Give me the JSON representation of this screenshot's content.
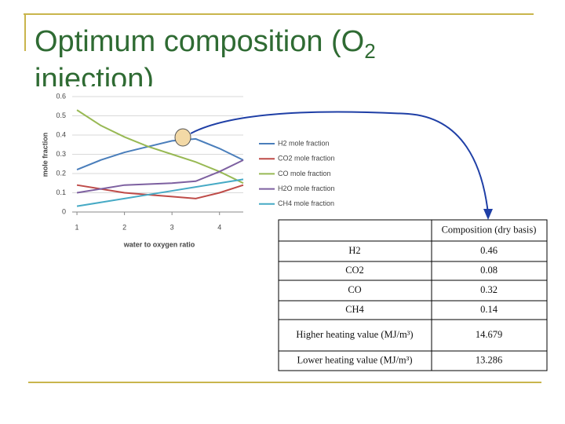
{
  "slide": {
    "title_main": "Optimum composition (O",
    "title_sub": "2",
    "title_rest": "injection)"
  },
  "chart_data": {
    "type": "line",
    "x": [
      1,
      1.5,
      2,
      2.5,
      3,
      3.5,
      4,
      4.5
    ],
    "xlim": [
      0.9,
      4.5
    ],
    "xticks": [
      1,
      2,
      3,
      4
    ],
    "ylim": [
      0,
      0.6
    ],
    "yticks": [
      0,
      0.1,
      0.2,
      0.3,
      0.4,
      0.5,
      0.6
    ],
    "x_label": "water to oxygen ratio",
    "y_label": "mole fraction",
    "series": [
      {
        "name": "H2 mole fraction",
        "color": "#4a7ebb",
        "values": [
          0.22,
          0.27,
          0.31,
          0.34,
          0.37,
          0.38,
          0.33,
          0.27
        ]
      },
      {
        "name": "CO2 mole fraction",
        "color": "#be4b48",
        "values": [
          0.14,
          0.12,
          0.1,
          0.09,
          0.08,
          0.07,
          0.1,
          0.14
        ]
      },
      {
        "name": "CO mole fraction",
        "color": "#98b954",
        "values": [
          0.53,
          0.45,
          0.39,
          0.34,
          0.3,
          0.26,
          0.21,
          0.15
        ]
      },
      {
        "name": "H2O mole fraction",
        "color": "#7d60a0",
        "values": [
          0.1,
          0.12,
          0.14,
          0.145,
          0.15,
          0.16,
          0.21,
          0.27
        ]
      },
      {
        "name": "CH4 mole fraction",
        "color": "#46aac5",
        "values": [
          0.03,
          0.05,
          0.07,
          0.09,
          0.11,
          0.13,
          0.15,
          0.17
        ]
      }
    ]
  },
  "table": {
    "header": "Composition (dry basis)",
    "rows": [
      [
        "H2",
        "0.46"
      ],
      [
        "CO2",
        "0.08"
      ],
      [
        "CO",
        "0.32"
      ],
      [
        "CH4",
        "0.14"
      ],
      [
        "Higher heating value (MJ/m³)",
        "14.679"
      ],
      [
        "Lower heating value (MJ/m³)",
        "13.286"
      ]
    ]
  }
}
